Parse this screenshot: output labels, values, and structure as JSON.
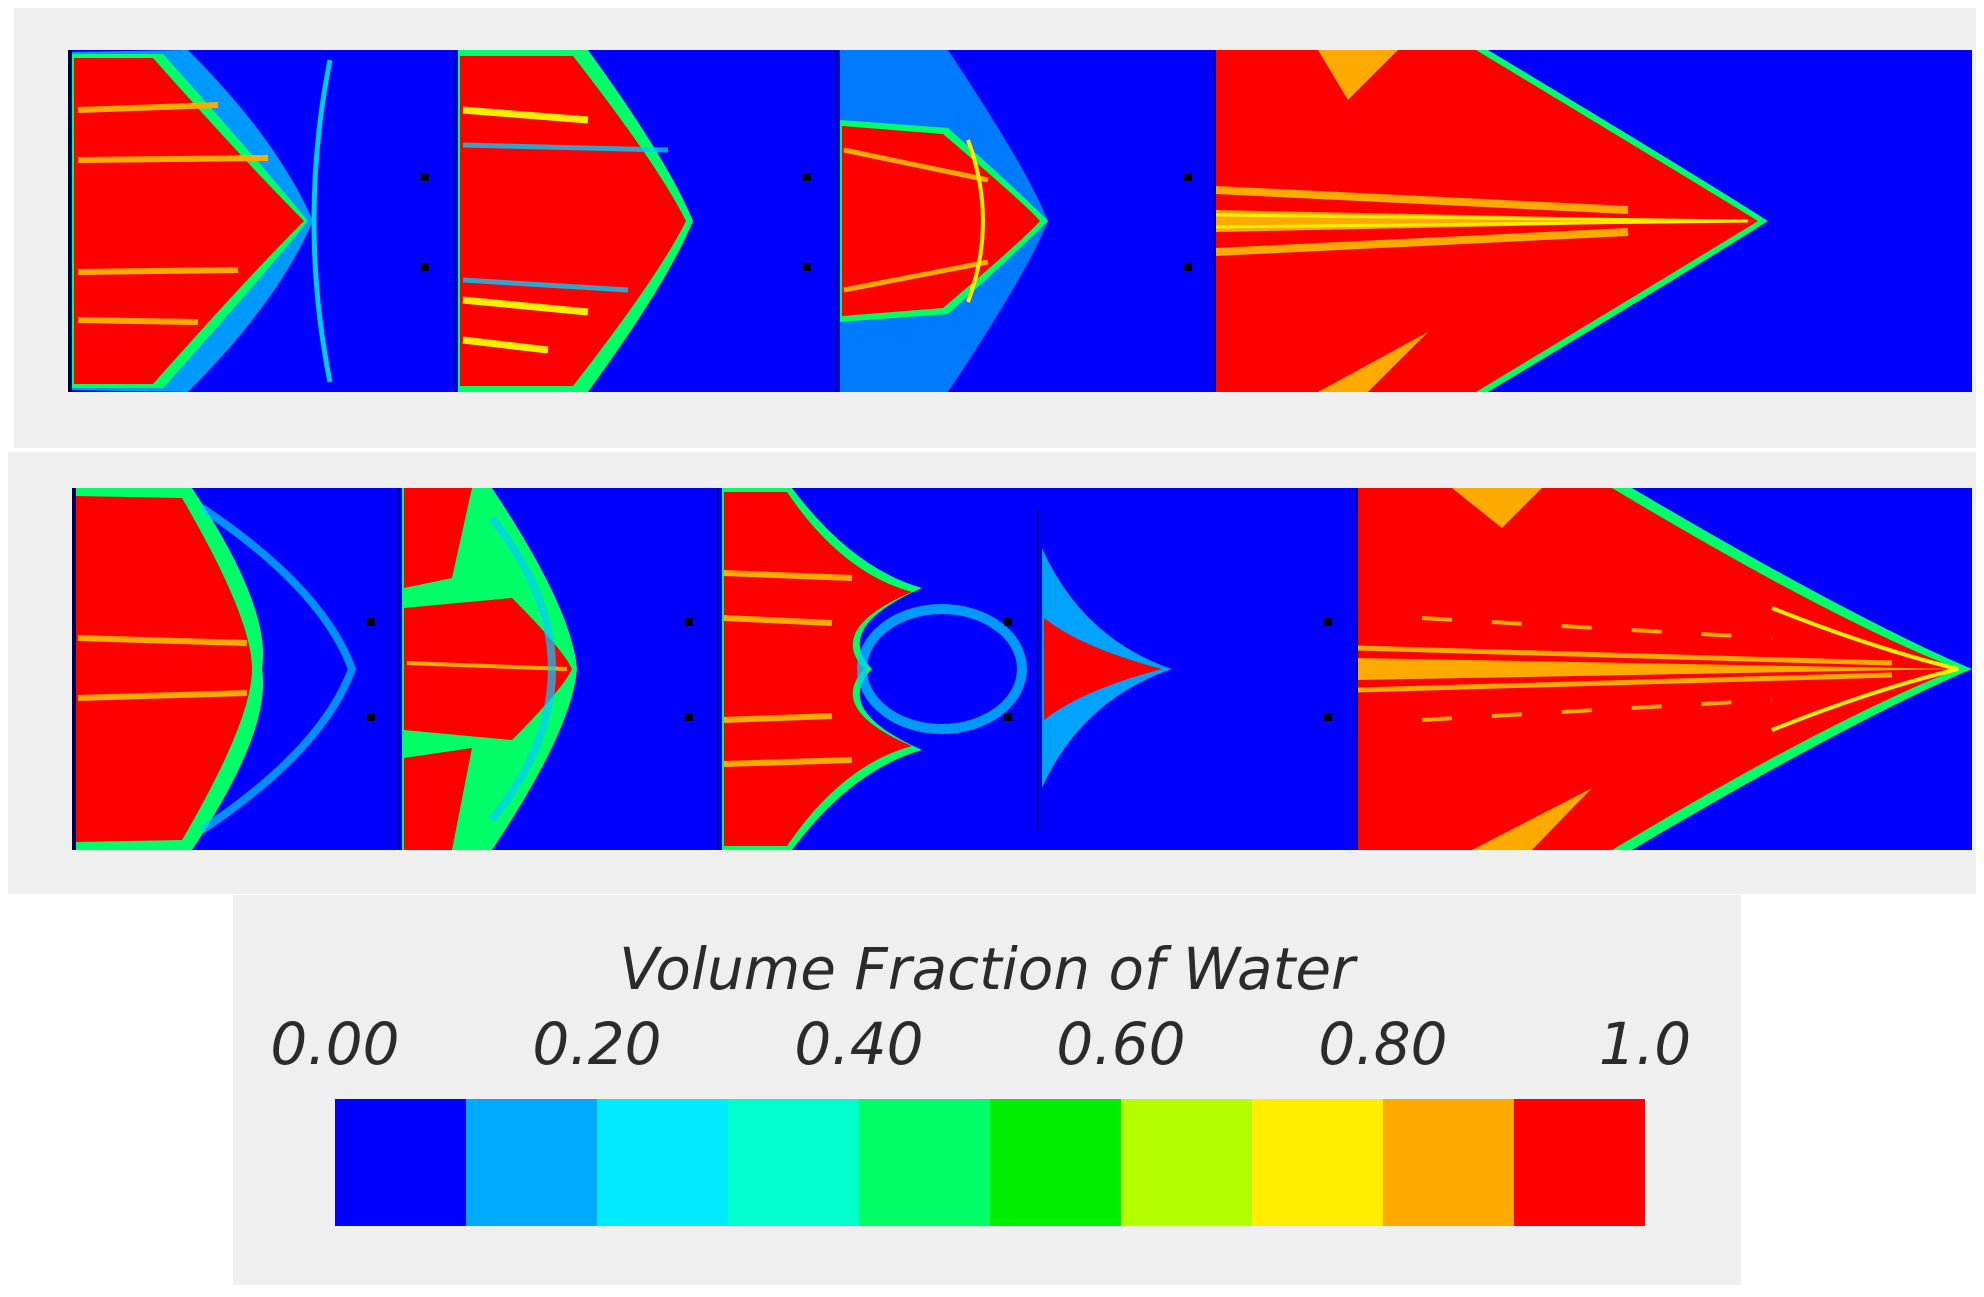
{
  "legend": {
    "title": "Volume Fraction of Water",
    "ticks": [
      "0.00",
      "0.20",
      "0.40",
      "0.60",
      "0.80",
      "1.0"
    ],
    "colors": [
      "#0000ff",
      "#00aaff",
      "#00ebff",
      "#00ffcc",
      "#00ff66",
      "#00ee00",
      "#b4ff00",
      "#ffee00",
      "#ffaa00",
      "#ff0000"
    ]
  },
  "palette": {
    "air": "#0000ff",
    "water": "#ff0000",
    "interface_outer": "#00ff66",
    "interface_inner": "#ffee00",
    "streak": "#ffaa00",
    "frame_bg": "#efefef"
  }
}
